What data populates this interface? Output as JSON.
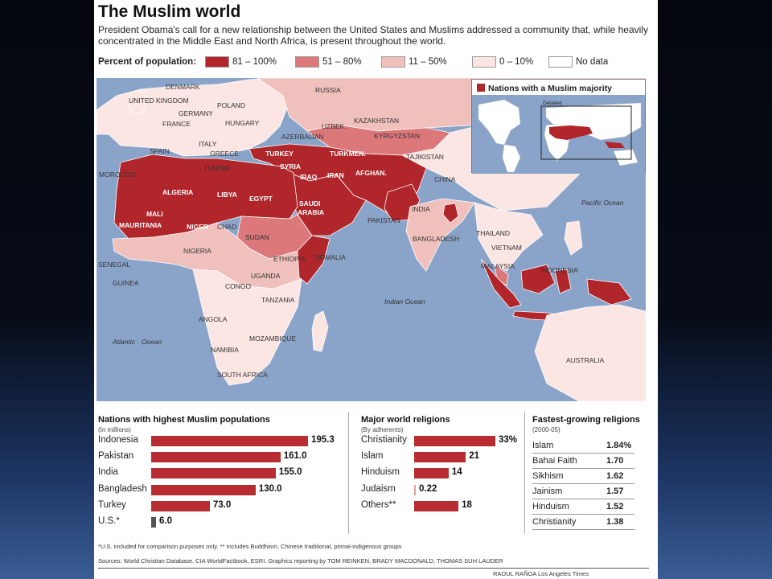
{
  "title": "The Muslim world",
  "subtitle": "President Obama's call for a new relationship between the United States and Muslims addressed a community that, while heavily concentrated in the Middle East and North Africa, is present throughout the world.",
  "legend": {
    "title": "Percent of population:",
    "items": [
      {
        "label": "81 – 100%",
        "color": "#b0262b"
      },
      {
        "label": "51 – 80%",
        "color": "#dc777a"
      },
      {
        "label": "11 – 50%",
        "color": "#f0c0bd"
      },
      {
        "label": "0 – 10%",
        "color": "#fbe6e3"
      },
      {
        "label": "No data",
        "color": "#ffffff"
      }
    ]
  },
  "colors": {
    "ocean": "#8aa4c9",
    "high": "#b0262b",
    "mid": "#dc777a",
    "low": "#f0c0bd",
    "min": "#fbe6e3",
    "nodata": "#ffffff"
  },
  "map": {
    "labels": {
      "denmark": "DENMARK",
      "russia": "RUSSIA",
      "uk": "UNITED KINGDOM",
      "poland": "POLAND",
      "germany": "GERMANY",
      "france": "FRANCE",
      "hungary": "HUNGARY",
      "uzbek": "UZBEK.",
      "kazakhstan": "KAZAKHSTAN",
      "azerbaijan": "AZERBAIJAN",
      "kyrgyzstan": "KYRGYZSTAN",
      "spain": "SPAIN",
      "italy": "ITALY",
      "greece": "GREECE",
      "turkey": "TURKEY",
      "turkmen": "TURKMEN.",
      "tajikistan": "TAJIKISTAN",
      "morocco": "MOROCCO",
      "tunisia": "TUNISIA",
      "syria": "SYRIA",
      "iraq": "IRAQ",
      "iran": "IRAN",
      "afghan": "AFGHAN.",
      "china": "CHINA",
      "algeria": "ALGERIA",
      "libya": "LIBYA",
      "egypt": "EGYPT",
      "saudi": "SAUDI",
      "arabia": "ARABIA",
      "pakistan": "PAKISTAN",
      "india": "INDIA",
      "mali": "MALI",
      "mauritania": "MAURITANIA",
      "niger": "NIGER",
      "chad": "CHAD",
      "sudan": "SUDAN",
      "bangladesh": "BANGLADESH",
      "thailand": "THAILAND",
      "vietnam": "VIETNAM",
      "senegal": "SENEGAL",
      "nigeria": "NIGERIA",
      "ethiopia": "ETHIOPIA",
      "somalia": "SOMALIA",
      "malaysia": "MALAYSIA",
      "indonesia": "INDONESIA",
      "guinea": "GUINEA",
      "congo": "CONGO",
      "uganda": "UGANDA",
      "tanzania": "TANZANIA",
      "angola": "ANGOLA",
      "namibia": "NAMIBIA",
      "mozambique": "MOZAMBIQUE",
      "south_africa": "SOUTH AFRICA",
      "australia": "AUSTRALIA",
      "pacific": "Pacific Ocean",
      "indian": "Indian Ocean",
      "atlantic_1": "Atlantic",
      "atlantic_2": "Ocean"
    }
  },
  "inset": {
    "title": "Nations with a Muslim majority",
    "detail_label": "Detailed"
  },
  "populations": {
    "title": "Nations with highest Muslim populations",
    "subtitle": "(In millions)",
    "max": 195.3,
    "items": [
      {
        "label": "Indonesia",
        "value": 195.3,
        "display": "195.3"
      },
      {
        "label": "Pakistan",
        "value": 161.0,
        "display": "161.0"
      },
      {
        "label": "India",
        "value": 155.0,
        "display": "155.0"
      },
      {
        "label": "Bangladesh",
        "value": 130.0,
        "display": "130.0"
      },
      {
        "label": "Turkey",
        "value": 73.0,
        "display": "73.0"
      },
      {
        "label": "U.S.*",
        "value": 6.0,
        "display": "6.0"
      }
    ]
  },
  "religions": {
    "title": "Major world religions",
    "subtitle": "(By adherents)",
    "max": 33,
    "items": [
      {
        "label": "Christianity",
        "value": 33,
        "display": "33%"
      },
      {
        "label": "Islam",
        "value": 21,
        "display": "21"
      },
      {
        "label": "Hinduism",
        "value": 14,
        "display": "14"
      },
      {
        "label": "Judaism",
        "value": 0.22,
        "display": "0.22"
      },
      {
        "label": "Others**",
        "value": 18,
        "display": "18"
      }
    ]
  },
  "growth": {
    "title": "Fastest-growing religions",
    "subtitle": "(2000-05)",
    "items": [
      {
        "label": "Islam",
        "value": "1.84%"
      },
      {
        "label": "Bahai Faith",
        "value": "1.70"
      },
      {
        "label": "Sikhism",
        "value": "1.62"
      },
      {
        "label": "Jainism",
        "value": "1.57"
      },
      {
        "label": "Hinduism",
        "value": "1.52"
      },
      {
        "label": "Christianity",
        "value": "1.38"
      }
    ]
  },
  "footnote": "*U.S. included for comparison purposes only. ** Includes Buddhism, Chinese traditional, primal-indigenous groups",
  "sources": "Sources: World Christian Database, CIA WorldFactbook, ESRI. Graphics reporting by TOM REINKEN, BRADY MACDONALD, THOMAS SUH LAUDER",
  "credit": "RAOUL RAÑOA Los Angeles Times",
  "chart_data": [
    {
      "type": "bar",
      "title": "Nations with highest Muslim populations",
      "subtitle": "(In millions)",
      "categories": [
        "Indonesia",
        "Pakistan",
        "India",
        "Bangladesh",
        "Turkey",
        "U.S.*"
      ],
      "values": [
        195.3,
        161.0,
        155.0,
        130.0,
        73.0,
        6.0
      ]
    },
    {
      "type": "bar",
      "title": "Major world religions",
      "subtitle": "(By adherents)",
      "categories": [
        "Christianity",
        "Islam",
        "Hinduism",
        "Judaism",
        "Others**"
      ],
      "values": [
        33,
        21,
        14,
        0.22,
        18
      ]
    },
    {
      "type": "table",
      "title": "Fastest-growing religions",
      "subtitle": "(2000-05)",
      "rows": [
        [
          "Islam",
          "1.84%"
        ],
        [
          "Bahai Faith",
          "1.70"
        ],
        [
          "Sikhism",
          "1.62"
        ],
        [
          "Jainism",
          "1.57"
        ],
        [
          "Hinduism",
          "1.52"
        ],
        [
          "Christianity",
          "1.38"
        ]
      ]
    }
  ]
}
